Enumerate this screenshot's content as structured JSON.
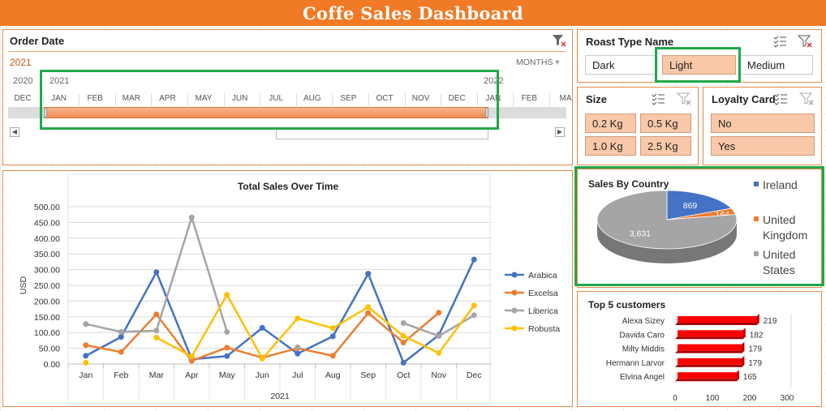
{
  "title": "Coffe Sales Dashboard",
  "order_date": {
    "title": "Order Date",
    "selected_year": "2021",
    "granularity": "MONTHS",
    "year_labels": [
      "2020",
      "2021",
      "2022"
    ],
    "months": [
      "DEC",
      "JAN",
      "FEB",
      "MAR",
      "APR",
      "MAY",
      "JUN",
      "JUL",
      "AUG",
      "SEP",
      "OCT",
      "NOV",
      "DEC",
      "JAN",
      "FEB",
      "MA"
    ]
  },
  "roast": {
    "title": "Roast Type Name",
    "options": [
      "Dark",
      "Light",
      "Medium"
    ],
    "selected": "Light"
  },
  "size": {
    "title": "Size",
    "options": [
      "0.2 Kg",
      "0.5 Kg",
      "1.0 Kg",
      "2.5 Kg"
    ]
  },
  "loyalty": {
    "title": "Loyalty Card",
    "options": [
      "No",
      "Yes"
    ]
  },
  "colors": {
    "accent": "#f07a25",
    "blue": "#4472c4",
    "orange": "#ed7d31",
    "gray": "#a5a5a5",
    "yellow": "#ffc000",
    "red": "#ff0000",
    "green": "#1fa84a"
  },
  "chart_data": [
    {
      "type": "line",
      "title": "Total Sales Over Time",
      "ylabel": "USD",
      "xlabel": "2021",
      "ylim": [
        0,
        500
      ],
      "yticks": [
        "0.00",
        "50.00",
        "100.00",
        "150.00",
        "200.00",
        "250.00",
        "300.00",
        "350.00",
        "400.00",
        "450.00",
        "500.00"
      ],
      "categories": [
        "Jan",
        "Feb",
        "Mar",
        "Apr",
        "May",
        "Jun",
        "Jul",
        "Aug",
        "Sep",
        "Oct",
        "Nov",
        "Dec"
      ],
      "series": [
        {
          "name": "Arabica",
          "color": "#4472c4",
          "values": [
            26,
            86,
            292,
            15,
            25,
            115,
            33,
            88,
            287,
            4,
            92,
            332
          ]
        },
        {
          "name": "Excelsa",
          "color": "#ed7d31",
          "values": [
            60,
            38,
            158,
            10,
            52,
            20,
            50,
            26,
            162,
            68,
            163,
            null
          ]
        },
        {
          "name": "Liberica",
          "color": "#a5a5a5",
          "values": [
            127,
            102,
            106,
            466,
            102,
            null,
            53,
            null,
            null,
            130,
            89,
            155
          ]
        },
        {
          "name": "Robusta",
          "color": "#ffc000",
          "values": [
            4,
            null,
            84,
            24,
            220,
            17,
            145,
            114,
            181,
            89,
            35,
            186
          ]
        }
      ]
    },
    {
      "type": "pie",
      "title": "Sales By Country",
      "labels": [
        "Ireland",
        "United Kingdom",
        "United States"
      ],
      "legend_labels": [
        [
          "Ireland"
        ],
        [
          "United",
          "Kingdom"
        ],
        [
          "United",
          "States"
        ]
      ],
      "values": [
        869,
        164,
        3631
      ],
      "value_labels": [
        "869",
        "164",
        "3,631"
      ],
      "colors": [
        "#4472c4",
        "#ed7d31",
        "#a5a5a5"
      ]
    },
    {
      "type": "bar",
      "title": "Top 5 customers",
      "categories": [
        "Alexa Sizey",
        "Davida Caro",
        "Milty Middis",
        "Hermann Larvor",
        "Elvina Angel"
      ],
      "values": [
        219,
        182,
        179,
        179,
        165
      ],
      "xticks": [
        "0",
        "100",
        "200",
        "300"
      ],
      "xlim": [
        0,
        300
      ]
    }
  ]
}
